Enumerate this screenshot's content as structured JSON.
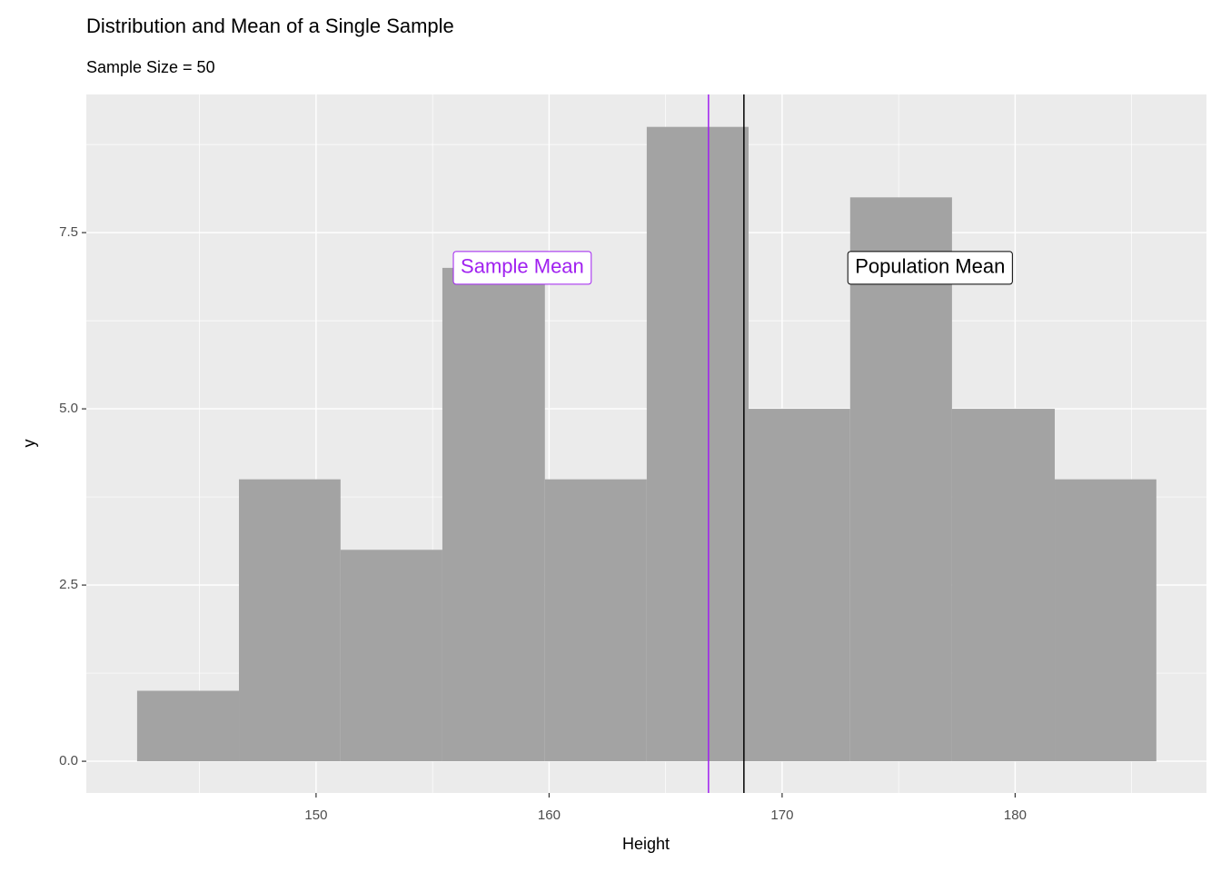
{
  "chart_data": {
    "type": "histogram",
    "title": "Distribution and Mean of a Single Sample",
    "subtitle": "Sample Size = 50",
    "x_label": "Height",
    "y_label": "y",
    "bins": [
      142.32,
      146.69,
      151.05,
      155.42,
      159.82,
      164.19,
      168.56,
      172.92,
      177.29,
      181.7,
      186.06
    ],
    "values": [
      1,
      4,
      3,
      7,
      4,
      9,
      5,
      8,
      5,
      4
    ],
    "color": "#a3a3a3",
    "xlim": [
      140.14,
      188.21
    ],
    "xticks": [
      150,
      160,
      170,
      180
    ],
    "xminor": [
      145,
      155,
      165,
      175,
      185
    ],
    "ylim": [
      -0.45,
      9.46
    ],
    "yticks": [
      {
        "value": 0,
        "label": "0.0"
      },
      2.5,
      {
        "value": 5,
        "label": "5.0"
      },
      7.5
    ],
    "yminor": [
      1.25,
      3.75,
      6.25,
      8.75
    ],
    "grid": true,
    "mean_lines": [
      {
        "label": "Sample Mean",
        "x": 166.84,
        "color": "#a020f0",
        "label_x": 158.85,
        "label_y": 7
      },
      {
        "label": "Population Mean",
        "x": 168.36,
        "color": "#000000",
        "label_x": 176.35,
        "label_y": 7
      }
    ]
  }
}
